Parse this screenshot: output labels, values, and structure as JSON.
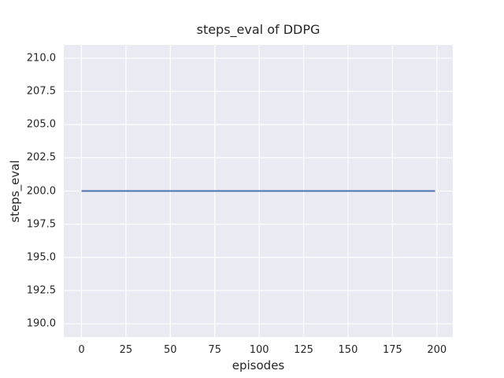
{
  "figure": {
    "background": "#ffffff"
  },
  "chart_data": {
    "type": "line",
    "title": "steps_eval of DDPG",
    "xlabel": "episodes",
    "ylabel": "steps_eval",
    "xlim": [
      -9.95,
      208.95
    ],
    "ylim": [
      189.0,
      211.0
    ],
    "x_ticks": [
      0,
      25,
      50,
      75,
      100,
      125,
      150,
      175,
      200
    ],
    "x_tick_labels": [
      "0",
      "25",
      "50",
      "75",
      "100",
      "125",
      "150",
      "175",
      "200"
    ],
    "y_ticks": [
      190.0,
      192.5,
      195.0,
      197.5,
      200.0,
      202.5,
      205.0,
      207.5,
      210.0
    ],
    "y_tick_labels": [
      "190.0",
      "192.5",
      "195.0",
      "197.5",
      "200.0",
      "202.5",
      "205.0",
      "207.5",
      "210.0"
    ],
    "grid": true,
    "legend": false,
    "plot_bg": "#eaeaf2",
    "grid_color": "#ffffff",
    "text_color": "#262626",
    "series": [
      {
        "name": "DDPG",
        "color": "#4c72b0",
        "x": [
          0,
          199
        ],
        "y": [
          200.0,
          200.0
        ],
        "note": "constant value 200.0 across episodes 0 to 199"
      }
    ]
  }
}
